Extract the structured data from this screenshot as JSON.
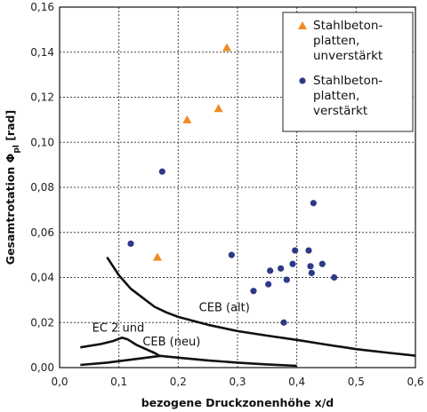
{
  "chart_data": {
    "type": "scatter",
    "xlabel": "bezogene Druckzonenhöhe x/d",
    "ylabel_main": "Gesamtrotation Φ",
    "ylabel_sub": "pl",
    "ylabel_unit": " [rad]",
    "xlim": [
      0.0,
      0.6
    ],
    "ylim": [
      0.0,
      0.16
    ],
    "x_ticks": [
      "0,0",
      "0,1",
      "0,2",
      "0,3",
      "0,4",
      "0,5",
      "0,6"
    ],
    "y_ticks": [
      "0,00",
      "0,02",
      "0,04",
      "0,06",
      "0,08",
      "0,10",
      "0,12",
      "0,14",
      "0,16"
    ],
    "grid": true,
    "legend_position": "top-right",
    "series": [
      {
        "name_lines": [
          "Stahlbeton-",
          "platten,",
          "unverstärkt"
        ],
        "marker": "triangle",
        "color": "#f08a24",
        "points": [
          [
            0.165,
            0.049
          ],
          [
            0.215,
            0.11
          ],
          [
            0.268,
            0.115
          ],
          [
            0.282,
            0.142
          ]
        ]
      },
      {
        "name_lines": [
          "Stahlbeton-",
          "platten,",
          "verstärkt"
        ],
        "marker": "circle",
        "color": "#2e3a87",
        "points": [
          [
            0.12,
            0.055
          ],
          [
            0.173,
            0.087
          ],
          [
            0.29,
            0.05
          ],
          [
            0.327,
            0.034
          ],
          [
            0.352,
            0.037
          ],
          [
            0.355,
            0.043
          ],
          [
            0.373,
            0.044
          ],
          [
            0.378,
            0.02
          ],
          [
            0.383,
            0.039
          ],
          [
            0.393,
            0.046
          ],
          [
            0.397,
            0.052
          ],
          [
            0.42,
            0.052
          ],
          [
            0.423,
            0.045
          ],
          [
            0.425,
            0.042
          ],
          [
            0.428,
            0.073
          ],
          [
            0.443,
            0.046
          ],
          [
            0.463,
            0.04
          ]
        ]
      }
    ],
    "curves": [
      {
        "label": "CEB (alt)",
        "points": [
          [
            0.08,
            0.049
          ],
          [
            0.1,
            0.041
          ],
          [
            0.12,
            0.035
          ],
          [
            0.14,
            0.031
          ],
          [
            0.16,
            0.027
          ],
          [
            0.18,
            0.0245
          ],
          [
            0.2,
            0.0225
          ],
          [
            0.25,
            0.019
          ],
          [
            0.3,
            0.0162
          ],
          [
            0.35,
            0.0142
          ],
          [
            0.4,
            0.0123
          ],
          [
            0.45,
            0.0102
          ],
          [
            0.5,
            0.0082
          ],
          [
            0.55,
            0.0067
          ],
          [
            0.6,
            0.0053
          ]
        ]
      },
      {
        "label": "EC 2 und CEB (neu)",
        "points": [
          [
            0.035,
            0.009
          ],
          [
            0.07,
            0.0105
          ],
          [
            0.09,
            0.0118
          ],
          [
            0.105,
            0.0133
          ],
          [
            0.115,
            0.0125
          ],
          [
            0.13,
            0.01
          ],
          [
            0.16,
            0.0065
          ],
          [
            0.17,
            0.005
          ]
        ]
      },
      {
        "label": "",
        "points": [
          [
            0.035,
            0.0012
          ],
          [
            0.08,
            0.0022
          ],
          [
            0.12,
            0.0035
          ],
          [
            0.17,
            0.0052
          ],
          [
            0.2,
            0.0044
          ],
          [
            0.25,
            0.0032
          ],
          [
            0.3,
            0.0022
          ],
          [
            0.35,
            0.0014
          ],
          [
            0.4,
            0.0008
          ]
        ]
      }
    ],
    "annotations": [
      {
        "text": "CEB (alt)",
        "x": 0.235,
        "y": 0.025
      },
      {
        "text": "EC 2 und",
        "x": 0.055,
        "y": 0.016
      },
      {
        "text": "CEB (neu)",
        "x": 0.14,
        "y": 0.0098
      }
    ]
  }
}
